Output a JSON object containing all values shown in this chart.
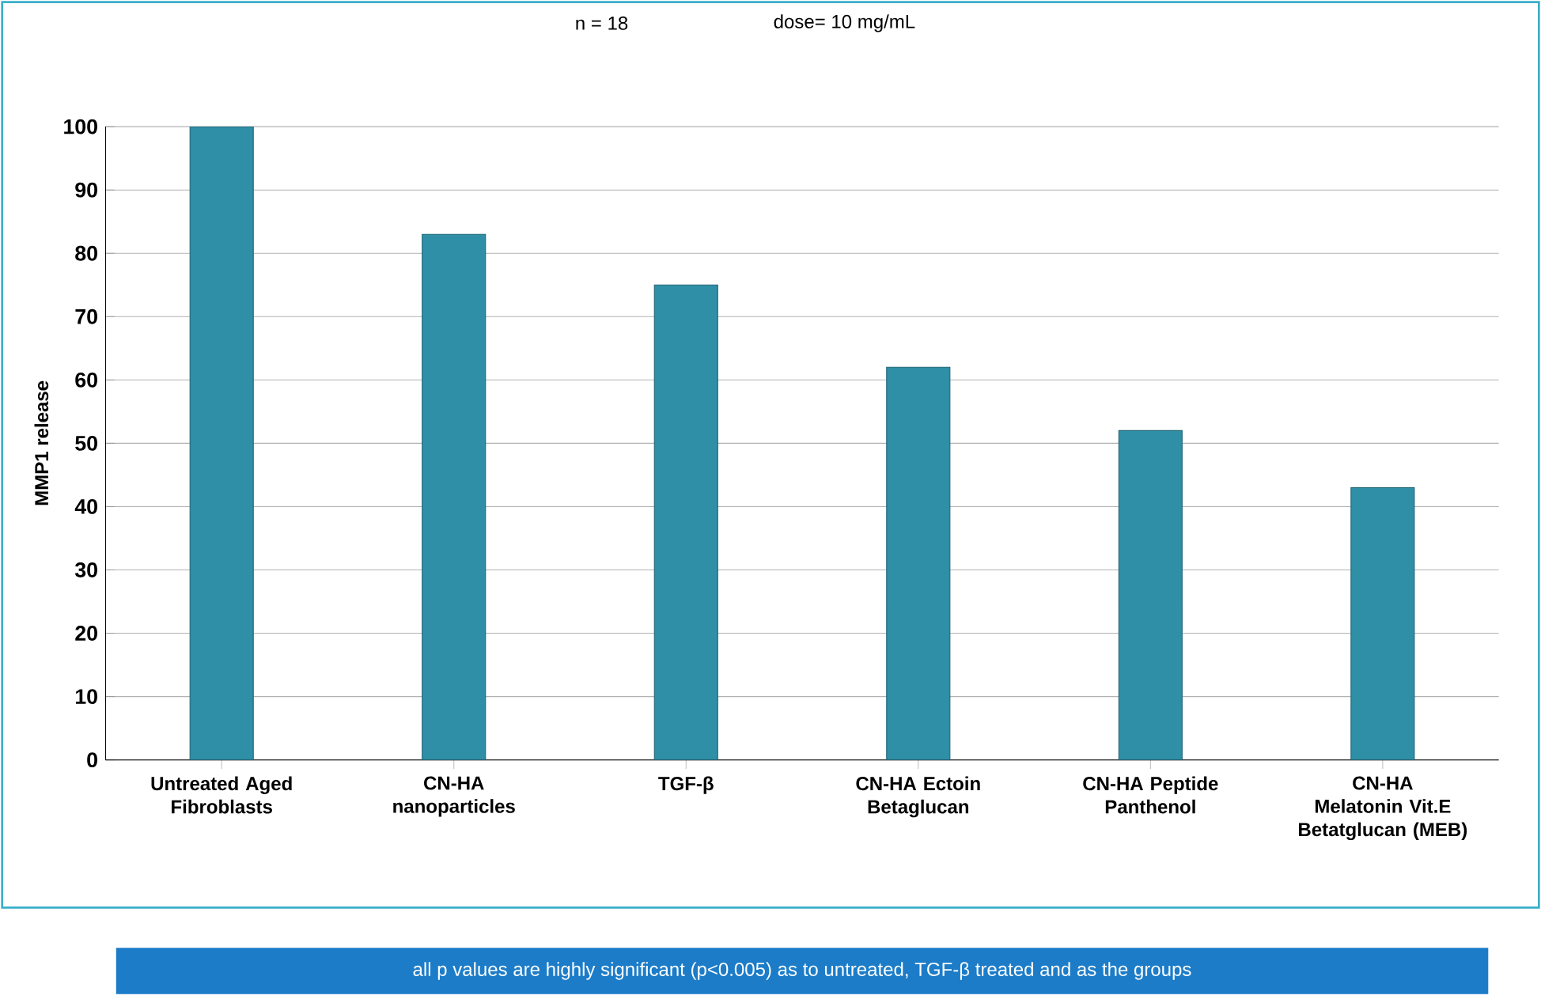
{
  "chart_data": {
    "type": "bar",
    "categories": [
      "Untreated Aged Fibroblasts",
      "CN-HA nanoparticles",
      "TGF-β",
      "CN-HA Ectoin Betaglucan",
      "CN-HA Peptide Panthenol",
      "CN-HA Melatonin Vit.E Betatglucan (MEB)"
    ],
    "values": [
      100,
      83,
      75,
      62,
      52,
      43
    ],
    "color": "#2e8fa6",
    "ylabel": "MMP1 release",
    "ylim": [
      0,
      100
    ],
    "yticks": [
      0,
      10,
      20,
      30,
      40,
      50,
      60,
      70,
      80,
      90,
      100
    ],
    "grid": "y",
    "annotations": [
      "n = 18",
      "dose= 10 mg/mL",
      "all p values are highly significant (p<0.005)  as to untreated, TGF-β treated  and as the groups"
    ]
  }
}
